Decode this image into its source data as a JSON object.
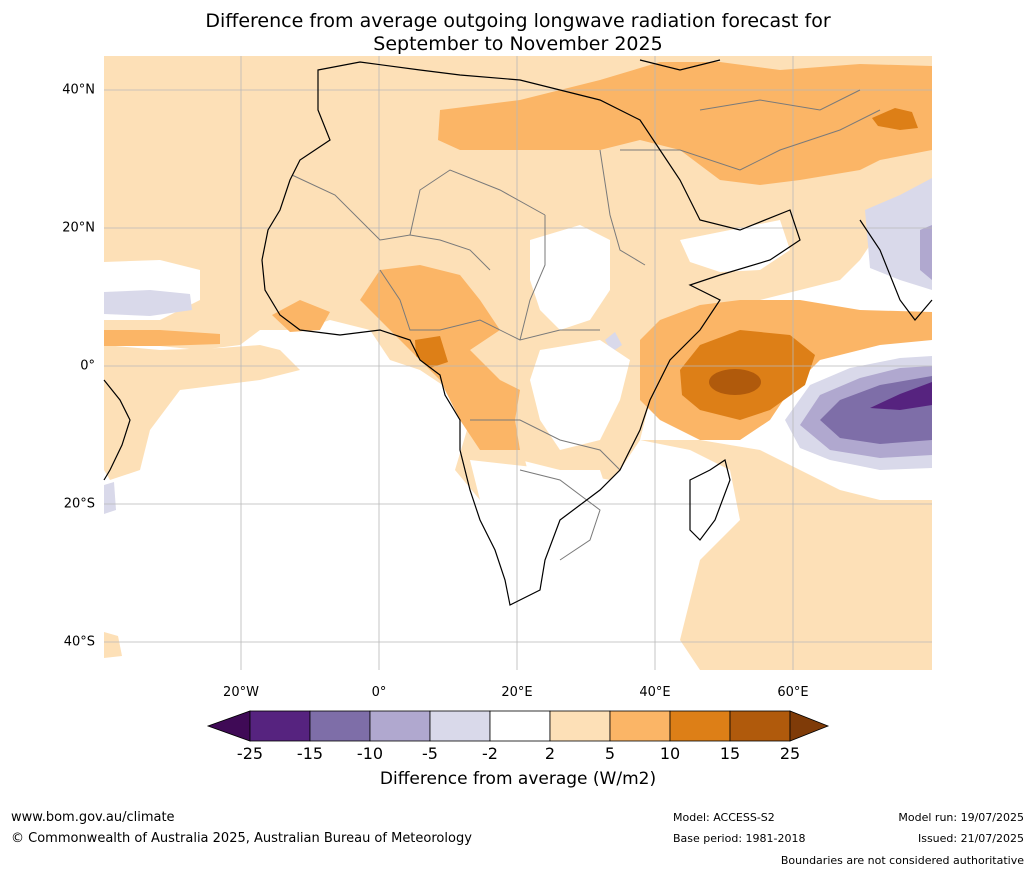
{
  "title_line1": "Difference from average outgoing longwave radiation forecast for",
  "title_line2": "September to November 2025",
  "lat_labels": [
    "40°N",
    "20°N",
    "0°",
    "20°S",
    "40°S"
  ],
  "lon_labels": [
    "20°W",
    "0°",
    "20°E",
    "40°E",
    "60°E"
  ],
  "legend": {
    "ticks": [
      "-25",
      "-15",
      "-10",
      "-5",
      "-2",
      "2",
      "5",
      "10",
      "15",
      "25"
    ],
    "colors": [
      "#3f0a56",
      "#56237f",
      "#7e6ea8",
      "#b0a8cf",
      "#d9d9ea",
      "#ffffff",
      "#fde0b7",
      "#fbb566",
      "#dd7f17",
      "#b05a0c",
      "#7f3b08"
    ],
    "label": "Difference from average (W/m2)"
  },
  "footer": {
    "website": "www.bom.gov.au/climate",
    "copyright": "© Commonwealth of Australia 2025, Australian Bureau of Meteorology",
    "model": "Model: ACCESS-S2",
    "base_period": "Base period: 1981-2018",
    "model_run": "Model run: 19/07/2025",
    "issued": "Issued: 21/07/2025",
    "disclaimer": "Boundaries are not considered authoritative"
  }
}
